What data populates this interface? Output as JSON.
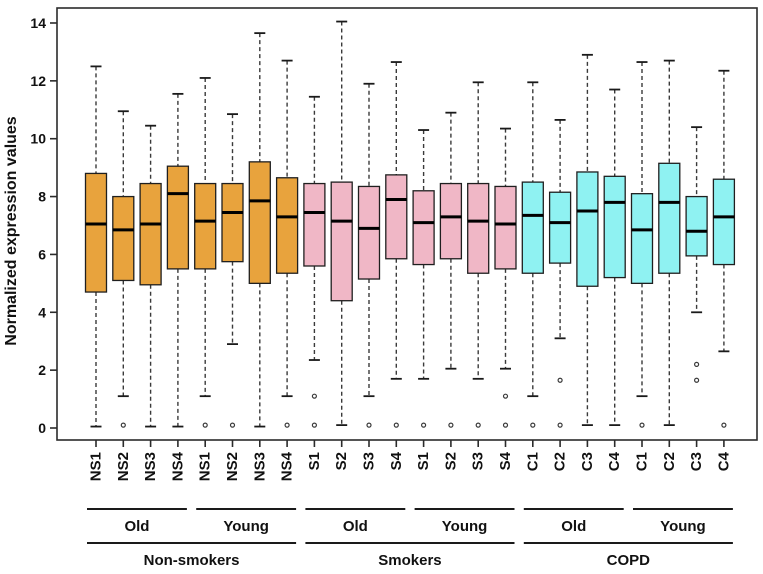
{
  "chart_data": {
    "type": "boxplot",
    "title": "",
    "ylabel": "Normalized expression values",
    "xlabel": "",
    "ylim": [
      0,
      14
    ],
    "yticks": [
      0,
      2,
      4,
      6,
      8,
      10,
      12,
      14
    ],
    "grid": false,
    "legend_position": "none",
    "colors": {
      "Non-smokers": "#E8A33D",
      "Smokers": "#F0B7C6",
      "COPD": "#8FF2F2"
    },
    "frame_color": "#2b2b2b",
    "whisker_color": "#3a3a3a",
    "median_color": "#000000",
    "age_groups": [
      {
        "label": "Old",
        "start": 0,
        "end": 3
      },
      {
        "label": "Young",
        "start": 4,
        "end": 7
      },
      {
        "label": "Old",
        "start": 8,
        "end": 11
      },
      {
        "label": "Young",
        "start": 12,
        "end": 15
      },
      {
        "label": "Old",
        "start": 16,
        "end": 19
      },
      {
        "label": "Young",
        "start": 20,
        "end": 23
      }
    ],
    "cohorts": [
      {
        "label": "Non-smokers",
        "start": 0,
        "end": 7
      },
      {
        "label": "Smokers",
        "start": 8,
        "end": 15
      },
      {
        "label": "COPD",
        "start": 16,
        "end": 23
      }
    ],
    "boxes": [
      {
        "label": "NS1",
        "cohort": "Non-smokers",
        "age": "Old",
        "low": 0.05,
        "q1": 4.7,
        "median": 7.05,
        "q3": 8.8,
        "high": 12.5,
        "outliers": []
      },
      {
        "label": "NS2",
        "cohort": "Non-smokers",
        "age": "Old",
        "low": 1.1,
        "q1": 5.1,
        "median": 6.85,
        "q3": 8.0,
        "high": 10.95,
        "outliers": [
          0.1
        ]
      },
      {
        "label": "NS3",
        "cohort": "Non-smokers",
        "age": "Old",
        "low": 0.05,
        "q1": 4.95,
        "median": 7.05,
        "q3": 8.45,
        "high": 10.45,
        "outliers": []
      },
      {
        "label": "NS4",
        "cohort": "Non-smokers",
        "age": "Old",
        "low": 0.05,
        "q1": 5.5,
        "median": 8.1,
        "q3": 9.05,
        "high": 11.55,
        "outliers": []
      },
      {
        "label": "NS1",
        "cohort": "Non-smokers",
        "age": "Young",
        "low": 1.1,
        "q1": 5.5,
        "median": 7.15,
        "q3": 8.45,
        "high": 12.1,
        "outliers": [
          0.1
        ]
      },
      {
        "label": "NS2",
        "cohort": "Non-smokers",
        "age": "Young",
        "low": 2.9,
        "q1": 5.75,
        "median": 7.45,
        "q3": 8.45,
        "high": 10.85,
        "outliers": [
          0.1
        ]
      },
      {
        "label": "NS3",
        "cohort": "Non-smokers",
        "age": "Young",
        "low": 0.05,
        "q1": 5.0,
        "median": 7.85,
        "q3": 9.2,
        "high": 13.65,
        "outliers": []
      },
      {
        "label": "NS4",
        "cohort": "Non-smokers",
        "age": "Young",
        "low": 1.1,
        "q1": 5.35,
        "median": 7.3,
        "q3": 8.65,
        "high": 12.7,
        "outliers": [
          0.1
        ]
      },
      {
        "label": "S1",
        "cohort": "Smokers",
        "age": "Old",
        "low": 2.35,
        "q1": 5.6,
        "median": 7.45,
        "q3": 8.45,
        "high": 11.45,
        "outliers": [
          1.1,
          0.1
        ]
      },
      {
        "label": "S2",
        "cohort": "Smokers",
        "age": "Old",
        "low": 0.1,
        "q1": 4.4,
        "median": 7.15,
        "q3": 8.5,
        "high": 14.05,
        "outliers": []
      },
      {
        "label": "S3",
        "cohort": "Smokers",
        "age": "Old",
        "low": 1.1,
        "q1": 5.15,
        "median": 6.9,
        "q3": 8.35,
        "high": 11.9,
        "outliers": [
          0.1
        ]
      },
      {
        "label": "S4",
        "cohort": "Smokers",
        "age": "Old",
        "low": 1.7,
        "q1": 5.85,
        "median": 7.9,
        "q3": 8.75,
        "high": 12.65,
        "outliers": [
          0.1
        ]
      },
      {
        "label": "S1",
        "cohort": "Smokers",
        "age": "Young",
        "low": 1.7,
        "q1": 5.65,
        "median": 7.1,
        "q3": 8.2,
        "high": 10.3,
        "outliers": [
          0.1
        ]
      },
      {
        "label": "S2",
        "cohort": "Smokers",
        "age": "Young",
        "low": 2.05,
        "q1": 5.85,
        "median": 7.3,
        "q3": 8.45,
        "high": 10.9,
        "outliers": [
          0.1
        ]
      },
      {
        "label": "S3",
        "cohort": "Smokers",
        "age": "Young",
        "low": 1.7,
        "q1": 5.35,
        "median": 7.15,
        "q3": 8.45,
        "high": 11.95,
        "outliers": [
          0.1
        ]
      },
      {
        "label": "S4",
        "cohort": "Smokers",
        "age": "Young",
        "low": 2.05,
        "q1": 5.5,
        "median": 7.05,
        "q3": 8.35,
        "high": 10.35,
        "outliers": [
          1.1,
          0.1
        ]
      },
      {
        "label": "C1",
        "cohort": "COPD",
        "age": "Old",
        "low": 1.1,
        "q1": 5.35,
        "median": 7.35,
        "q3": 8.5,
        "high": 11.95,
        "outliers": [
          0.1
        ]
      },
      {
        "label": "C2",
        "cohort": "COPD",
        "age": "Old",
        "low": 3.1,
        "q1": 5.7,
        "median": 7.1,
        "q3": 8.15,
        "high": 10.65,
        "outliers": [
          1.65,
          0.1
        ]
      },
      {
        "label": "C3",
        "cohort": "COPD",
        "age": "Old",
        "low": 0.1,
        "q1": 4.9,
        "median": 7.5,
        "q3": 8.85,
        "high": 12.9,
        "outliers": []
      },
      {
        "label": "C4",
        "cohort": "COPD",
        "age": "Old",
        "low": 0.1,
        "q1": 5.2,
        "median": 7.8,
        "q3": 8.7,
        "high": 11.7,
        "outliers": []
      },
      {
        "label": "C1",
        "cohort": "COPD",
        "age": "Young",
        "low": 1.1,
        "q1": 5.0,
        "median": 6.85,
        "q3": 8.1,
        "high": 12.65,
        "outliers": [
          0.1
        ]
      },
      {
        "label": "C2",
        "cohort": "COPD",
        "age": "Young",
        "low": 0.1,
        "q1": 5.35,
        "median": 7.8,
        "q3": 9.15,
        "high": 12.7,
        "outliers": []
      },
      {
        "label": "C3",
        "cohort": "COPD",
        "age": "Young",
        "low": 4.0,
        "q1": 5.95,
        "median": 6.8,
        "q3": 8.0,
        "high": 10.4,
        "outliers": [
          2.2,
          1.65
        ]
      },
      {
        "label": "C4",
        "cohort": "COPD",
        "age": "Young",
        "low": 2.65,
        "q1": 5.65,
        "median": 7.3,
        "q3": 8.6,
        "high": 12.35,
        "outliers": [
          0.1
        ]
      }
    ]
  }
}
